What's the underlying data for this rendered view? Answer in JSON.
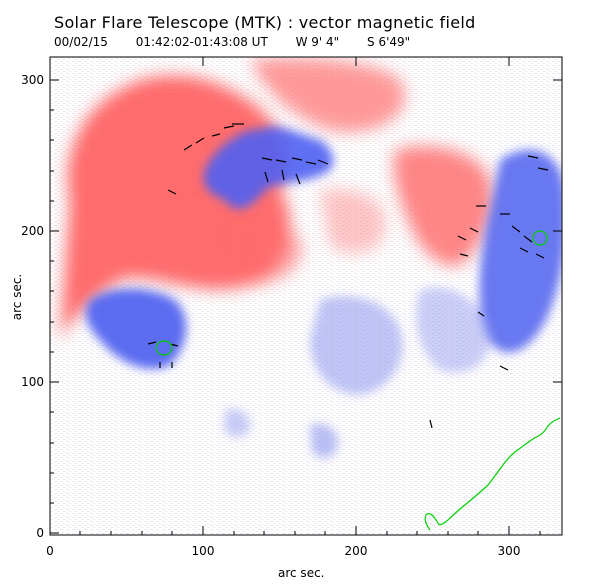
{
  "header": {
    "title": "Solar Flare Telescope (MTK) : vector magnetic field",
    "date": "00/02/15",
    "time_range": "01:42:02-01:43:08 UT",
    "longitude": "W 9' 4\"",
    "latitude": "S 6'49\""
  },
  "axes": {
    "xlabel": "arc sec.",
    "ylabel": "arc sec.",
    "xticks": [
      "0",
      "100",
      "200",
      "300"
    ],
    "yticks": [
      "0",
      "100",
      "200",
      "300"
    ],
    "xlim": [
      0,
      335
    ],
    "ylim": [
      0,
      320
    ]
  },
  "colors": {
    "positive": "#ff3b3b",
    "negative": "#4b5cf0",
    "contour": "#00d000",
    "frame": "#000000"
  }
}
